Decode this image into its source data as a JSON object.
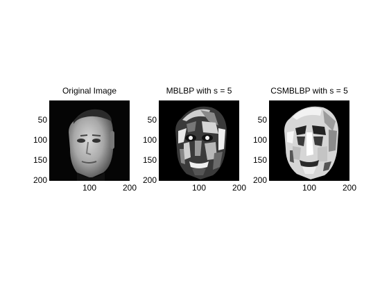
{
  "panels": [
    {
      "title": "Original Image",
      "y_ticks": [
        "50",
        "100",
        "150",
        "200"
      ],
      "x_ticks": [
        "100",
        "200"
      ]
    },
    {
      "title": "MBLBP with s = 5",
      "y_ticks": [
        "50",
        "100",
        "150",
        "200"
      ],
      "x_ticks": [
        "100",
        "200"
      ]
    },
    {
      "title": "CSMBLBP with s = 5",
      "y_ticks": [
        "50",
        "100",
        "150",
        "200"
      ],
      "x_ticks": [
        "100",
        "200"
      ]
    }
  ]
}
